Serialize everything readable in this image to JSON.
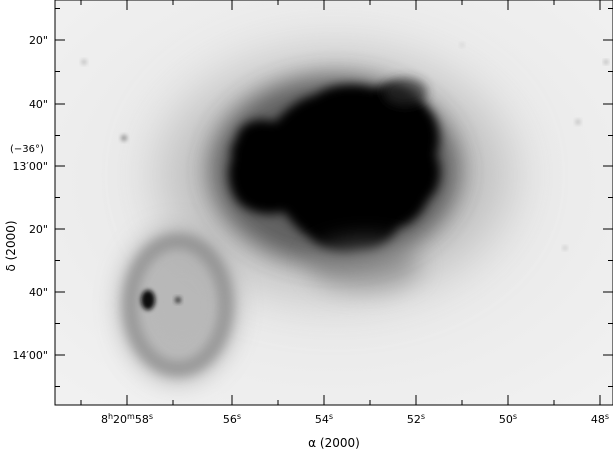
{
  "figure": {
    "x_axis_title": "α (2000)",
    "y_axis_title": "δ (2000)",
    "dec_degree_label": "(−36°)",
    "ra_ticks": [
      {
        "text": "8",
        "sup1": "h",
        "text2": "20",
        "sup2": "m",
        "text3": "58",
        "sup3": "s"
      },
      {
        "text": "56",
        "sup1": "s"
      },
      {
        "text": "54",
        "sup1": "s"
      },
      {
        "text": "52",
        "sup1": "s"
      },
      {
        "text": "50",
        "sup1": "s"
      },
      {
        "text": "48",
        "sup1": "s"
      }
    ],
    "dec_ticks": [
      "20\"",
      "40\"",
      "13′00\"",
      "20\"",
      "40\"",
      "14′00\""
    ],
    "colors": {
      "background": "#ececec",
      "nebula": "#000000",
      "axes": "#000000"
    }
  }
}
